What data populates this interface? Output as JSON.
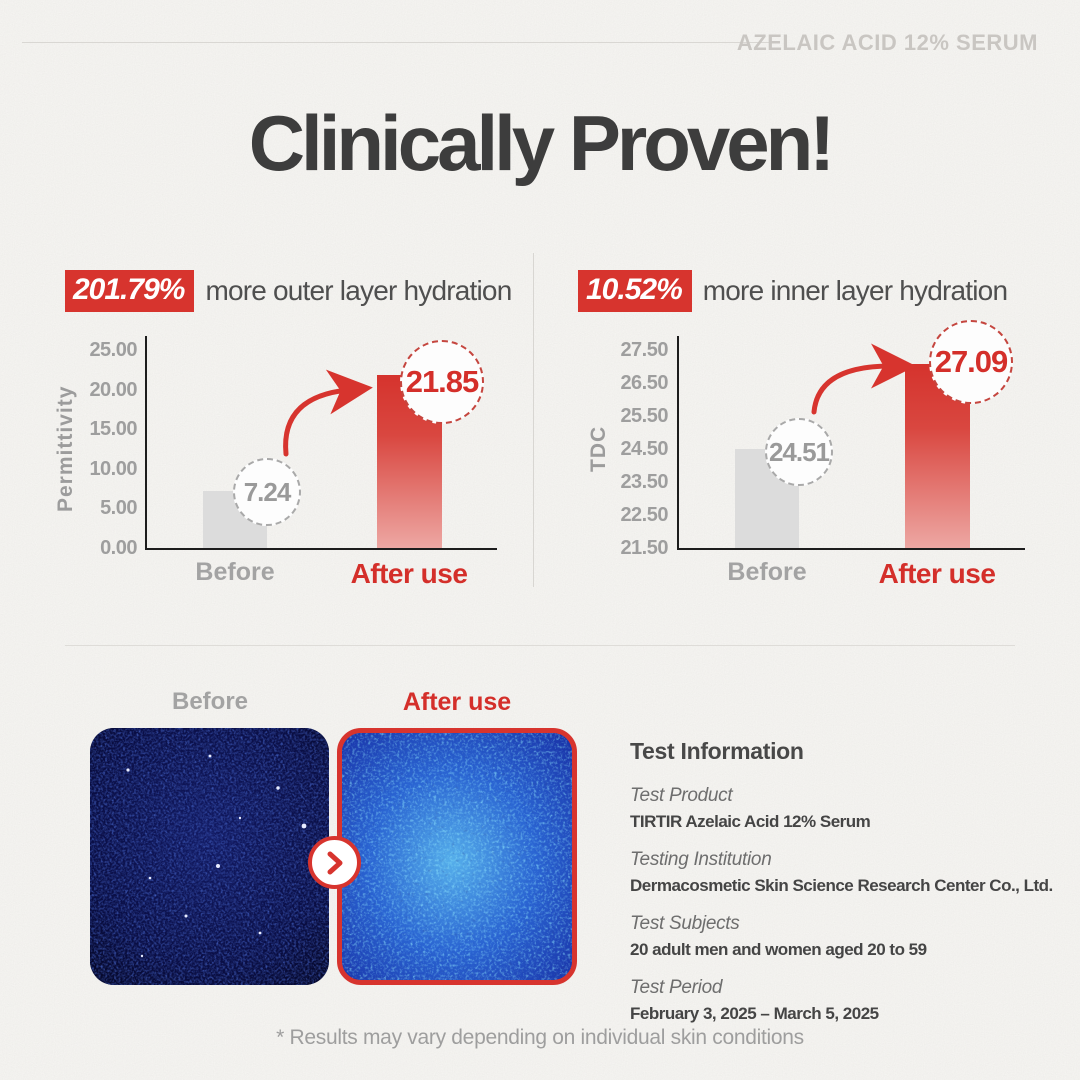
{
  "header": {
    "brand": "AZELAIC ACID 12% SERUM"
  },
  "title": "Clinically Proven!",
  "charts": [
    {
      "badge": "201.79%",
      "headline": "more outer layer hydration",
      "ylabel": "Permittivity",
      "yticks": [
        "25.00",
        "20.00",
        "15.00",
        "10.00",
        "5.00",
        "0.00"
      ],
      "before_label": "Before",
      "after_label": "After use",
      "before_value": "7.24",
      "after_value": "21.85"
    },
    {
      "badge": "10.52%",
      "headline": "more inner layer hydration",
      "ylabel": "TDC",
      "yticks": [
        "27.50",
        "26.50",
        "25.50",
        "24.50",
        "23.50",
        "22.50",
        "21.50"
      ],
      "before_label": "Before",
      "after_label": "After use",
      "before_value": "24.51",
      "after_value": "27.09"
    }
  ],
  "comparison": {
    "before_label": "Before",
    "after_label": "After use",
    "arrow_icon": "chevron-right-icon"
  },
  "test_info": {
    "title": "Test Information",
    "rows": [
      {
        "label": "Test Product",
        "value": "TIRTIR Azelaic Acid 12% Serum"
      },
      {
        "label": "Testing Institution",
        "value": "Dermacosmetic Skin Science Research Center Co., Ltd."
      },
      {
        "label": "Test Subjects",
        "value": "20 adult men and women aged 20 to 59"
      },
      {
        "label": "Test Period",
        "value": "February 3, 2025 – March 5, 2025"
      }
    ]
  },
  "footnote": "* Results may vary depending on individual skin conditions",
  "colors": {
    "accent_red": "#d7342e",
    "value_red": "#d42f2a",
    "title_gray": "#3d3d3d",
    "muted_gray": "#a3a3a3",
    "bar_gray": "#dcdcdc",
    "background": "#f5f4f1"
  },
  "chart_data": [
    {
      "type": "bar",
      "title": "201.79% more outer layer hydration",
      "categories": [
        "Before",
        "After use"
      ],
      "values": [
        7.24,
        21.85
      ],
      "xlabel": "",
      "ylabel": "Permittivity",
      "ylim": [
        0,
        25
      ],
      "ytick_step": 5,
      "grid": false,
      "legend": false
    },
    {
      "type": "bar",
      "title": "10.52% more inner layer hydration",
      "categories": [
        "Before",
        "After use"
      ],
      "values": [
        24.51,
        27.09
      ],
      "xlabel": "",
      "ylabel": "TDC",
      "ylim": [
        21.5,
        27.5
      ],
      "ytick_step": 1,
      "grid": false,
      "legend": false
    }
  ]
}
